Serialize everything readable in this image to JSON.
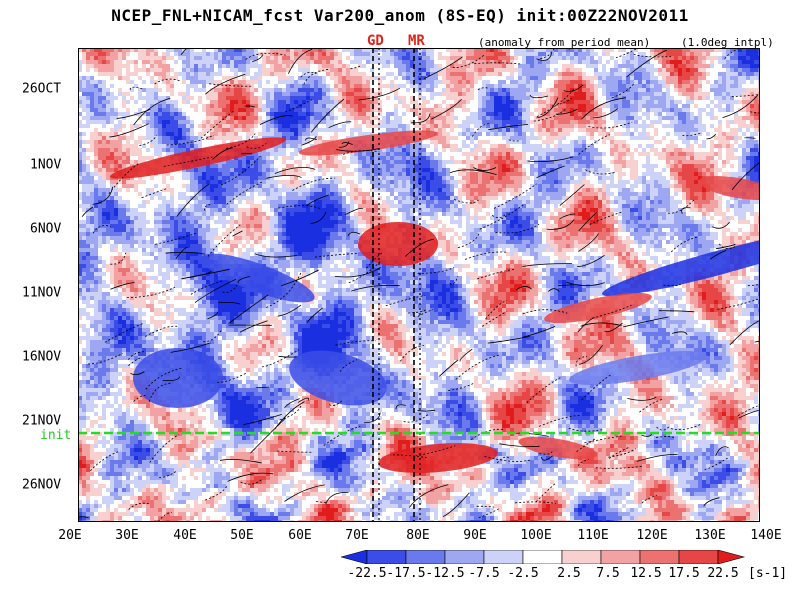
{
  "title": "NCEP_FNL+NICAM_fcst Var200_anom (8S-EQ) init:00Z22NOV2011",
  "markers": [
    {
      "label": "GD",
      "lon": 73
    },
    {
      "label": "MR",
      "lon": 80
    }
  ],
  "note_anomaly": "(anomaly from period mean)",
  "note_interp": "(1.0deg intpl)",
  "init_label": "init",
  "colors": {
    "init_line": "#22dd22",
    "marker_label": "#e0241c",
    "colorbar": [
      "#1a2fe0",
      "#3b4de6",
      "#6a7aec",
      "#9ea8f2",
      "#ccd2f8",
      "#ffffff",
      "#f8d0d0",
      "#f2a2a2",
      "#ec7272",
      "#e64646",
      "#e01c1c"
    ]
  },
  "chart_data": {
    "type": "heatmap",
    "title": "NCEP_FNL+NICAM_fcst Var200_anom (8S-EQ) init:00Z22NOV2011",
    "x_axis": {
      "range": [
        "20E",
        "140E"
      ],
      "ticks": [
        "20E",
        "30E",
        "40E",
        "50E",
        "60E",
        "70E",
        "80E",
        "90E",
        "100E",
        "110E",
        "120E",
        "130E",
        "140E"
      ]
    },
    "y_axis": {
      "direction": "time increasing downward",
      "range": [
        "24OCT2011",
        "29NOV2011"
      ],
      "ticks": [
        "26OCT",
        "1NOV",
        "6NOV",
        "11NOV",
        "16NOV",
        "21NOV",
        "26NOV"
      ]
    },
    "init_time": "00Z22NOV2011",
    "colorbar": {
      "levels": [
        "-22.5",
        "-17.5",
        "-12.5",
        "-7.5",
        "-2.5",
        "2.5",
        "7.5",
        "12.5",
        "17.5",
        "22.5"
      ],
      "units": "[s-1]"
    }
  }
}
